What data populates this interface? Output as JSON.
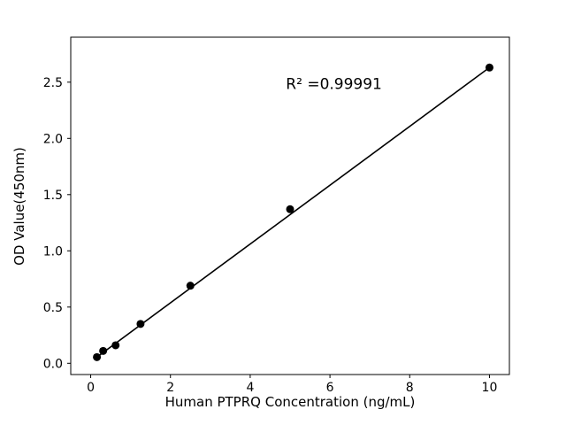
{
  "figure": {
    "background": "#ffffff"
  },
  "chart_data": {
    "type": "scatter",
    "title": "",
    "xlabel": "Human PTPRQ Concentration (ng/mL)",
    "ylabel": "OD Value(450nm)",
    "annotation": {
      "text": "R² =0.99991",
      "x": 6.1,
      "y": 2.44
    },
    "x": [
      0.156,
      0.3125,
      0.625,
      1.25,
      2.5,
      5,
      10
    ],
    "y": [
      0.055,
      0.11,
      0.16,
      0.35,
      0.69,
      1.37,
      2.63
    ],
    "fit_line": {
      "x1": 0.156,
      "y1": 0.055,
      "x2": 10,
      "y2": 2.63
    },
    "xlim": [
      -0.5,
      10.5
    ],
    "ylim": [
      -0.1,
      2.9
    ],
    "xticks": [
      0,
      2,
      4,
      6,
      8,
      10
    ],
    "yticks": [
      0.0,
      0.5,
      1.0,
      1.5,
      2.0,
      2.5
    ],
    "x_tick_decimals": 0,
    "y_tick_decimals": 1,
    "marker_color": "#000000",
    "line_color": "#000000",
    "axis_color": "#000000",
    "grid": false,
    "legend": null
  }
}
